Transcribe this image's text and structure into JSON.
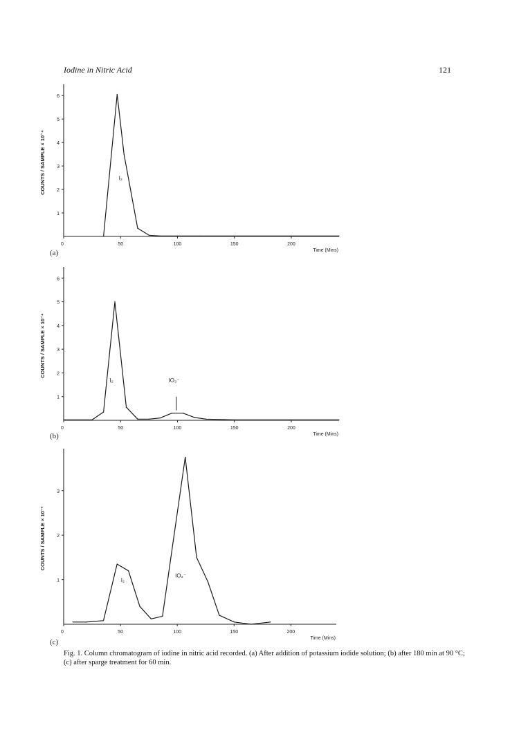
{
  "header": {
    "running_title": "Iodine in Nitric Acid",
    "page_number": "121"
  },
  "caption": "Fig. 1. Column chromatogram of iodine in nitric acid recorded. (a) After addition of potassium iodide solution; (b) after 180 min at 90 °C; (c) after sparge treatment for 60 min.",
  "chart_data": [
    {
      "type": "line",
      "panel_label": "(a)",
      "ylabel": "COUNTS / SAMPLE × 10⁻⁴",
      "xlabel": "Time (Mins)",
      "x_ticks": [
        "0",
        "50",
        "100",
        "150",
        "200"
      ],
      "y_ticks": [
        "1",
        "2",
        "3",
        "4",
        "5",
        "6"
      ],
      "xlim": [
        0,
        242
      ],
      "ylim": [
        0,
        6.3
      ],
      "series": [
        {
          "x": [
            35,
            47,
            53,
            65,
            75,
            85,
            100,
            120,
            150,
            200,
            242
          ],
          "y": [
            0,
            6.05,
            3.5,
            0.35,
            0.05,
            0.02,
            0.02,
            0.02,
            0.02,
            0.02,
            0.02
          ]
        }
      ],
      "annotations": [
        {
          "text": "I₂",
          "x": 50,
          "y": 2.4
        }
      ]
    },
    {
      "type": "line",
      "panel_label": "(b)",
      "ylabel": "COUNTS / SAMPLE × 10⁻⁴",
      "xlabel": "Time (Mins)",
      "x_ticks": [
        "0",
        "50",
        "100",
        "150",
        "200"
      ],
      "y_ticks": [
        "1",
        "2",
        "3",
        "4",
        "5",
        "6"
      ],
      "xlim": [
        0,
        242
      ],
      "ylim": [
        0,
        6.3
      ],
      "series": [
        {
          "x": [
            0,
            25,
            35,
            45,
            55,
            65,
            75,
            85,
            95,
            105,
            115,
            125,
            150,
            200,
            242
          ],
          "y": [
            0.02,
            0.02,
            0.35,
            5.0,
            0.55,
            0.05,
            0.05,
            0.1,
            0.3,
            0.3,
            0.12,
            0.05,
            0.02,
            0.02,
            0.02
          ]
        }
      ],
      "annotations": [
        {
          "text": "I₂",
          "x": 42,
          "y": 1.6
        },
        {
          "text": "IO₃⁻",
          "x": 97,
          "y": 1.6
        }
      ]
    },
    {
      "type": "line",
      "panel_label": "(c)",
      "ylabel": "COUNTS / SAMPLE × 10⁻³",
      "xlabel": "Time (Mins)",
      "x_ticks": [
        "0",
        "50",
        "100",
        "150",
        "200"
      ],
      "y_ticks": [
        "1",
        "2",
        "3"
      ],
      "xlim": [
        0,
        240
      ],
      "ylim": [
        0,
        3.85
      ],
      "series": [
        {
          "x": [
            8,
            20,
            35,
            47,
            57,
            67,
            77,
            87,
            107,
            117,
            127,
            137,
            150,
            165,
            182
          ],
          "y": [
            0.05,
            0.05,
            0.08,
            1.35,
            1.2,
            0.4,
            0.12,
            0.18,
            3.75,
            1.5,
            0.95,
            0.2,
            0.05,
            0.0,
            0.05
          ]
        }
      ],
      "annotations": [
        {
          "text": "I₂",
          "x": 52,
          "y": 0.95
        },
        {
          "text": "IO₃⁻",
          "x": 103,
          "y": 1.05
        }
      ]
    }
  ]
}
